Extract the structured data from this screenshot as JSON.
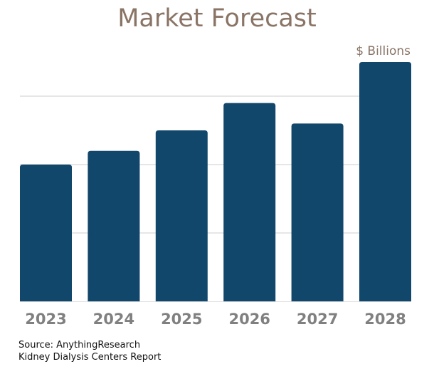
{
  "chart_data": {
    "type": "bar",
    "title": "Market Forecast",
    "unit_label": "$ Billions",
    "categories": [
      "2023",
      "2024",
      "2025",
      "2026",
      "2027",
      "2028"
    ],
    "values": [
      2.0,
      2.2,
      2.5,
      2.9,
      2.6,
      3.5
    ],
    "ylim": [
      0,
      3.5
    ],
    "gridlines": [
      1,
      2,
      3
    ],
    "grid": true,
    "y_tick_labels_shown": false,
    "bar_color": "#11476b",
    "grid_color": "#cccccc",
    "tick_label_color": "#808080"
  },
  "footer": {
    "source": "Source: AnythingResearch",
    "report": "Kidney Dialysis Centers  Report"
  }
}
